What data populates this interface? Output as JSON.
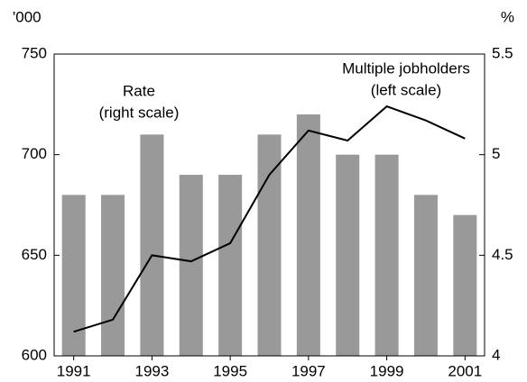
{
  "chart_data": {
    "type": "bar-line",
    "y_unit": "'000",
    "y2_unit": "%",
    "x": [
      1991,
      1992,
      1993,
      1994,
      1995,
      1996,
      1997,
      1998,
      1999,
      2000,
      2001
    ],
    "xlim": [
      1990.5,
      2001.5
    ],
    "xticks": [
      1991,
      1993,
      1995,
      1997,
      1999,
      2001
    ],
    "ylim": [
      600,
      750
    ],
    "yticks": [
      600,
      650,
      700,
      750
    ],
    "y2lim": [
      4,
      5.5
    ],
    "y2ticks": [
      4,
      4.5,
      5,
      5.5
    ],
    "series": [
      {
        "type": "bar",
        "color": "#999999",
        "values": [
          680,
          680,
          710,
          690,
          690,
          710,
          720,
          700,
          700,
          680,
          670
        ]
      },
      {
        "type": "line",
        "axis": "y2",
        "color": "#000000",
        "values": [
          4.12,
          4.18,
          4.5,
          4.47,
          4.56,
          4.9,
          5.12,
          5.07,
          5.24,
          5.17,
          5.08
        ]
      }
    ],
    "annotations": [
      [
        "Rate",
        "(right scale)"
      ],
      [
        "Multiple jobholders",
        "(left scale)"
      ]
    ]
  }
}
